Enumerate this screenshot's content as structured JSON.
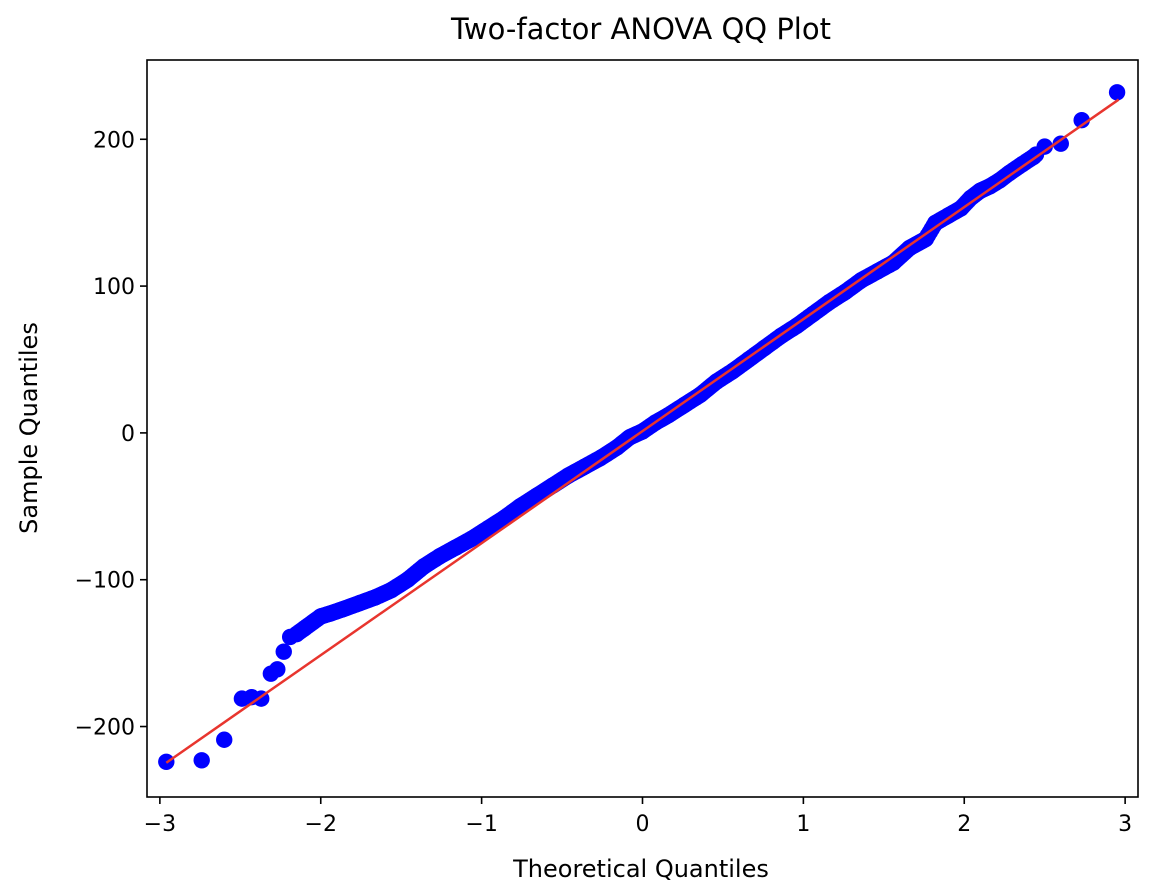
{
  "chart_data": {
    "type": "scatter",
    "title": "Two-factor ANOVA QQ Plot",
    "xlabel": "Theoretical Quantiles",
    "ylabel": "Sample Quantiles",
    "xlim": [
      -3.08,
      3.08
    ],
    "ylim": [
      -248,
      254
    ],
    "xticks": [
      -3,
      -2,
      -1,
      0,
      1,
      2,
      3
    ],
    "xtick_labels": [
      "−3",
      "−2",
      "−1",
      "0",
      "1",
      "2",
      "3"
    ],
    "yticks": [
      -200,
      -100,
      0,
      100,
      200
    ],
    "ytick_labels": [
      "−200",
      "−100",
      "0",
      "100",
      "200"
    ],
    "grid": false,
    "colors": {
      "points": "#0000ff",
      "line": "#e8352e",
      "axes": "#000000"
    },
    "reference_line": {
      "slope": 76.3,
      "intercept": 1.2,
      "x_range": [
        -2.96,
        2.96
      ]
    },
    "outliers": [
      [
        -2.96,
        -224
      ],
      [
        -2.74,
        -223
      ],
      [
        -2.6,
        -209
      ],
      [
        -2.49,
        -181
      ],
      [
        -2.43,
        -180
      ],
      [
        -2.37,
        -181
      ],
      [
        -2.31,
        -164
      ],
      [
        -2.27,
        -161
      ],
      [
        -2.23,
        -149
      ],
      [
        -2.19,
        -139
      ]
    ],
    "series": [
      {
        "x": [
          -2.96,
          -2.74,
          -2.6,
          -2.49,
          -2.43,
          -2.37,
          -2.31,
          -2.27,
          -2.23,
          -2.19,
          -2.15,
          -2.1,
          -2.05,
          -2.0,
          -1.94,
          -1.86,
          -1.76,
          -1.66,
          -1.56,
          -1.46,
          -1.36,
          -1.26,
          -1.16,
          -1.06,
          -0.96,
          -0.86,
          -0.76,
          -0.66,
          -0.56,
          -0.46,
          -0.36,
          -0.26,
          -0.16,
          -0.08,
          0.0,
          0.08,
          0.16,
          0.26,
          0.36,
          0.46,
          0.56,
          0.66,
          0.76,
          0.86,
          0.96,
          1.06,
          1.16,
          1.26,
          1.36,
          1.46,
          1.56,
          1.66,
          1.76,
          1.82,
          1.9,
          1.98,
          2.04,
          2.1,
          2.16,
          2.22,
          2.28,
          2.36,
          2.43,
          2.5,
          2.6,
          2.73,
          2.95
        ],
        "y": [
          -224,
          -223,
          -209,
          -181,
          -180,
          -181,
          -164,
          -161,
          -149,
          -139,
          -137,
          -133,
          -129,
          -125,
          -123,
          -120,
          -116,
          -112,
          -107,
          -100,
          -91,
          -84,
          -78,
          -72,
          -65,
          -58,
          -50,
          -43,
          -36,
          -29,
          -23,
          -17,
          -10,
          -3,
          1,
          7,
          12,
          19,
          26,
          35,
          42,
          50,
          58,
          66,
          73,
          81,
          89,
          96,
          104,
          110,
          116,
          126,
          132,
          143,
          148,
          153,
          160,
          165,
          168,
          172,
          177,
          183,
          188,
          195,
          197,
          213,
          232
        ]
      }
    ]
  }
}
